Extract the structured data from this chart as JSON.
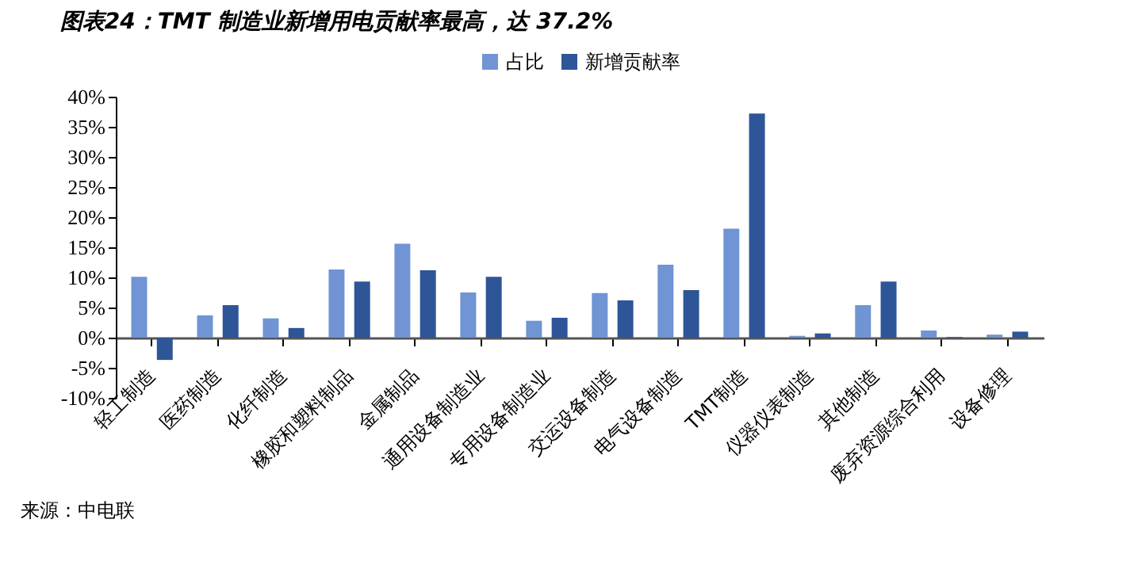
{
  "chart_data": {
    "type": "bar",
    "title": "图表24：TMT 制造业新增用电贡献率最高，达 37.2%",
    "categories": [
      "轻工制造",
      "医药制造",
      "化纤制造",
      "橡胶和塑料制品",
      "金属制品",
      "通用设备制造业",
      "专用设备制造业",
      "交运设备制造",
      "电气设备制造",
      "TMT制造",
      "仪器仪表制造",
      "其他制造",
      "废弃资源综合利用",
      "设备修理"
    ],
    "series": [
      {
        "name": "占比",
        "color": "#7094d4",
        "values": [
          10.1,
          3.7,
          3.2,
          11.3,
          15.6,
          7.5,
          2.8,
          7.4,
          12.1,
          18.1,
          0.3,
          5.4,
          1.2,
          0.5
        ]
      },
      {
        "name": "新增贡献率",
        "color": "#2e5597",
        "values": [
          -3.7,
          5.4,
          1.6,
          9.3,
          11.2,
          10.1,
          3.3,
          6.2,
          7.9,
          37.2,
          0.7,
          9.3,
          0.1,
          1.0
        ]
      }
    ],
    "ylim": [
      -10,
      40
    ],
    "yticks": [
      {
        "value": -10,
        "label": "-10%"
      },
      {
        "value": -5,
        "label": "-5%"
      },
      {
        "value": 0,
        "label": "0%"
      },
      {
        "value": 5,
        "label": "5%"
      },
      {
        "value": 10,
        "label": "10%"
      },
      {
        "value": 15,
        "label": "15%"
      },
      {
        "value": 20,
        "label": "20%"
      },
      {
        "value": 25,
        "label": "25%"
      },
      {
        "value": 30,
        "label": "30%"
      },
      {
        "value": 35,
        "label": "35%"
      },
      {
        "value": 40,
        "label": "40%"
      }
    ],
    "grid": false,
    "legend": "top",
    "annotations": [
      "来源：中电联"
    ]
  }
}
